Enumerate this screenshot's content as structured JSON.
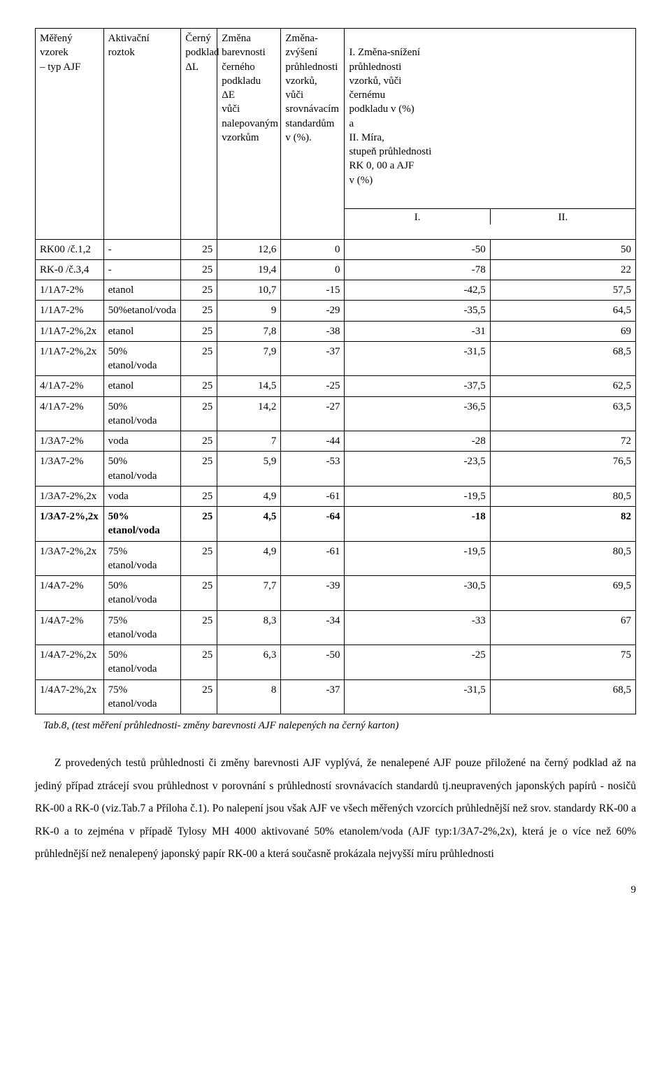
{
  "table": {
    "headers": {
      "sample": "Měřený vzorek\n– typ AJF",
      "activ": "Aktivační roztok",
      "dl": "Černý\npodklad\nΔL",
      "de": "Změna\nbarevnosti\nčerného\npodkladu ΔE\nvůči\nnalepovaným\nvzorkům",
      "zv": "Změna-\nzvýšení\nprůhlednosti\nvzorků,\nvůči\nsrovnávacím\nstandardům\n v (%).",
      "sn": "I. Změna-snížení\nprůhlednosti\nvzorků, vůči\nčernému\npodkladu v (%)\na\nII. Míra,\nstupeň průhlednosti\nRK 0, 00 a AJF\n v (%)",
      "sub_i": "I.",
      "sub_ii": "II."
    },
    "rows": [
      {
        "s": "RK00 /č.1,2",
        "a": "-",
        "dl": "25",
        "de": "12,6",
        "zv": "0",
        "i": "-50",
        "ii": "50",
        "bold": false
      },
      {
        "s": "RK-0 /č.3,4",
        "a": "-",
        "dl": "25",
        "de": "19,4",
        "zv": "0",
        "i": "-78",
        "ii": "22",
        "bold": false
      },
      {
        "s": "1/1A7-2%",
        "a": "etanol",
        "dl": "25",
        "de": "10,7",
        "zv": "-15",
        "i": "-42,5",
        "ii": "57,5",
        "bold": false
      },
      {
        "s": "1/1A7-2%",
        "a": "50%etanol/voda",
        "dl": "25",
        "de": "9",
        "zv": "-29",
        "i": "-35,5",
        "ii": "64,5",
        "bold": false
      },
      {
        "s": "1/1A7-2%,2x",
        "a": "etanol",
        "dl": "25",
        "de": "7,8",
        "zv": "-38",
        "i": "-31",
        "ii": "69",
        "bold": false
      },
      {
        "s": "1/1A7-2%,2x",
        "a": "50% etanol/voda",
        "dl": "25",
        "de": "7,9",
        "zv": "-37",
        "i": "-31,5",
        "ii": "68,5",
        "bold": false
      },
      {
        "s": "4/1A7-2%",
        "a": "etanol",
        "dl": "25",
        "de": "14,5",
        "zv": "-25",
        "i": "-37,5",
        "ii": "62,5",
        "bold": false
      },
      {
        "s": "4/1A7-2%",
        "a": "50% etanol/voda",
        "dl": "25",
        "de": "14,2",
        "zv": "-27",
        "i": "-36,5",
        "ii": "63,5",
        "bold": false
      },
      {
        "s": "1/3A7-2%",
        "a": "voda",
        "dl": "25",
        "de": "7",
        "zv": "-44",
        "i": "-28",
        "ii": "72",
        "bold": false
      },
      {
        "s": "1/3A7-2%",
        "a": "50% etanol/voda",
        "dl": "25",
        "de": "5,9",
        "zv": "-53",
        "i": "-23,5",
        "ii": "76,5",
        "bold": false
      },
      {
        "s": "1/3A7-2%,2x",
        "a": "voda",
        "dl": "25",
        "de": "4,9",
        "zv": "-61",
        "i": "-19,5",
        "ii": "80,5",
        "bold": false
      },
      {
        "s": "1/3A7-2%,2x",
        "a": "50% etanol/voda",
        "dl": "25",
        "de": "4,5",
        "zv": "-64",
        "i": "-18",
        "ii": "82",
        "bold": true
      },
      {
        "s": "1/3A7-2%,2x",
        "a": "75% etanol/voda",
        "dl": "25",
        "de": "4,9",
        "zv": "-61",
        "i": "-19,5",
        "ii": "80,5",
        "bold": false
      },
      {
        "s": "1/4A7-2%",
        "a": "50% etanol/voda",
        "dl": "25",
        "de": "7,7",
        "zv": "-39",
        "i": "-30,5",
        "ii": "69,5",
        "bold": false
      },
      {
        "s": "1/4A7-2%",
        "a": "75% etanol/voda",
        "dl": "25",
        "de": "8,3",
        "zv": "-34",
        "i": "-33",
        "ii": "67",
        "bold": false
      },
      {
        "s": "1/4A7-2%,2x",
        "a": "50% etanol/voda",
        "dl": "25",
        "de": "6,3",
        "zv": "-50",
        "i": "-25",
        "ii": "75",
        "bold": false
      },
      {
        "s": "1/4A7-2%,2x",
        "a": "75% etanol/voda",
        "dl": "25",
        "de": "8",
        "zv": "-37",
        "i": "-31,5",
        "ii": "68,5",
        "bold": false
      }
    ]
  },
  "caption": "Tab.8, (test měření  průhlednosti- změny barevnosti AJF nalepených na černý karton)",
  "paragraph": "Z provedených testů průhlednosti či změny barevnosti AJF vyplývá, že nenalepené AJF pouze přiložené na černý podklad až na jediný  případ ztrácejí svou průhlednost v porovnání s průhledností srovnávacích standardů tj.neupravených  japonských papírů - nosičů RK-00 a RK-0 (viz.Tab.7 a Příloha č.1). Po nalepení jsou však AJF ve všech měřených vzorcích průhlednější než srov. standardy RK-00 a RK-0 a to zejména v případě  Tylosy MH 4000 aktivované 50% etanolem/voda (AJF typ:1/3A7-2%,2x), která je o více než 60% průhlednější než nenalepený japonský papír RK-00 a která současně prokázala nejvyšší míru průhlednosti",
  "page_number": "9",
  "colors": {
    "text": "#000000",
    "background": "#ffffff",
    "border": "#000000"
  }
}
